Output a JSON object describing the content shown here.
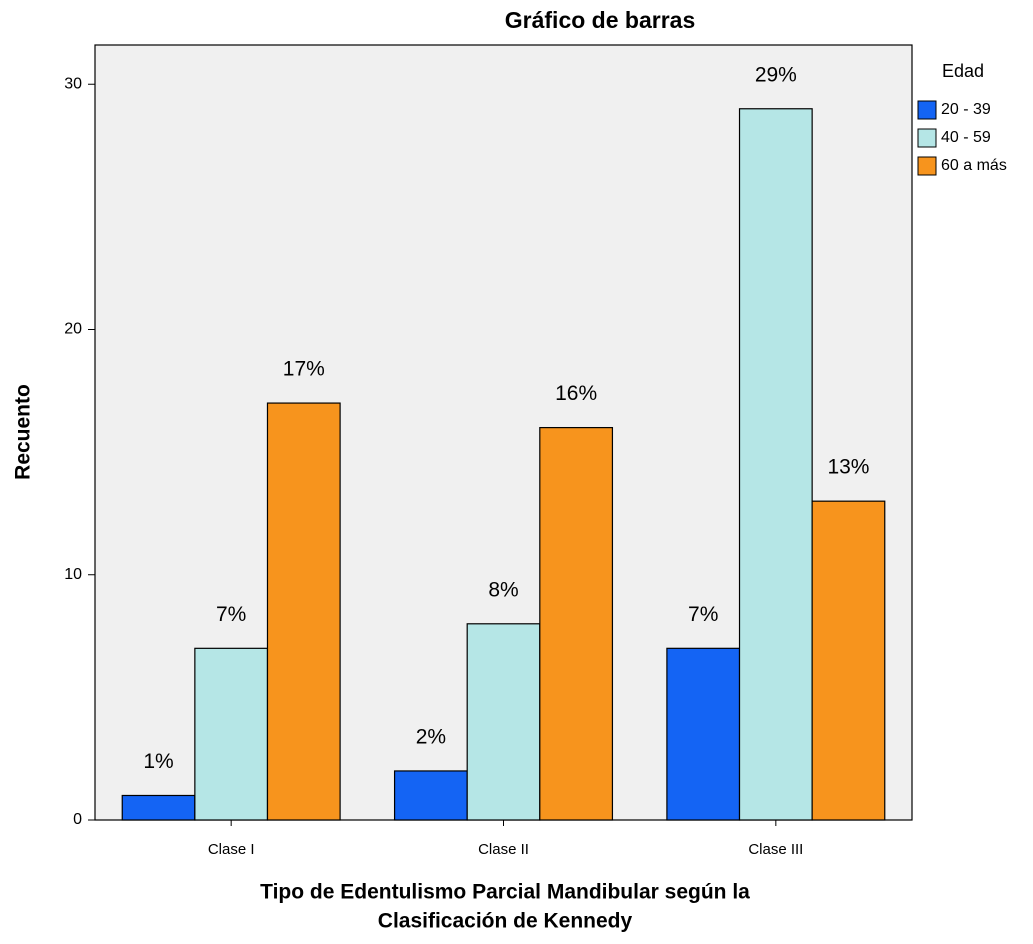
{
  "chart_data": {
    "type": "bar",
    "title": "Gráfico de barras",
    "x_label": [
      "Tipo de Edentulismo Parcial Mandibular según la",
      "Clasificación de Kennedy"
    ],
    "y_label": "Recuento",
    "legend_title": "Edad",
    "legend_position": "right",
    "categories": [
      "Clase I",
      "Clase II",
      "Clase III"
    ],
    "series": [
      {
        "name": "20 - 39",
        "color": "#1464f4",
        "values": [
          1,
          2,
          7
        ],
        "value_labels": [
          "1%",
          "2%",
          "7%"
        ]
      },
      {
        "name": "40 - 59",
        "color": "#b5e6e6",
        "values": [
          7,
          8,
          29
        ],
        "value_labels": [
          "7%",
          "8%",
          "29%"
        ]
      },
      {
        "name": "60 a más",
        "color": "#f7941d",
        "values": [
          17,
          16,
          13
        ],
        "value_labels": [
          "17%",
          "16%",
          "13%"
        ]
      }
    ],
    "ylim": [
      0,
      31.6
    ],
    "yticks": [
      0,
      10,
      20,
      30
    ],
    "grid": false
  }
}
